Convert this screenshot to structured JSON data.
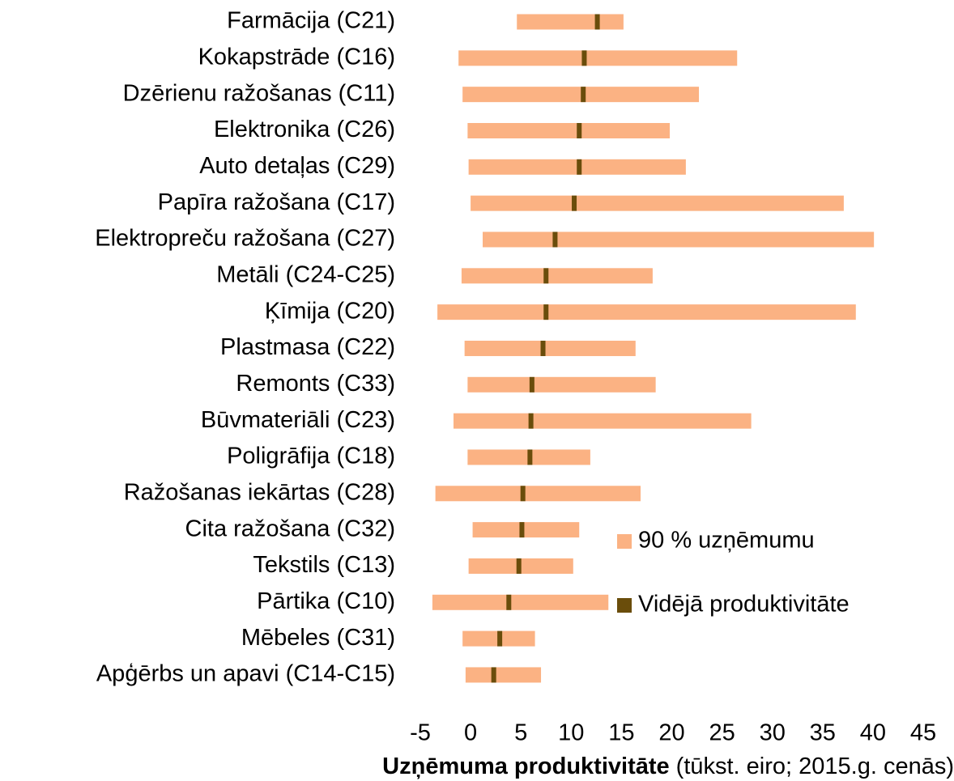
{
  "chart_data": {
    "type": "range_bar",
    "categories": [
      "Farmācija (C21)",
      "Kokapstrāde (C16)",
      "Dzērienu ražošanas (C11)",
      "Elektronika (C26)",
      "Auto detaļas (C29)",
      "Papīra ražošana (C17)",
      "Elektropreču ražošana (C27)",
      "Metāli (C24-C25)",
      "Ķīmija (C20)",
      "Plastmasa (C22)",
      "Remonts (C33)",
      "Būvmateriāli (C23)",
      "Poligrāfija (C18)",
      "Ražošanas iekārtas (C28)",
      "Cita ražošana (C32)",
      "Tekstils (C13)",
      "Pārtika (C10)",
      "Mēbeles (C31)",
      "Apģērbs un apavi (C14-C15)"
    ],
    "series": [
      {
        "name": "90 % uzņēmumu",
        "color": "#fbb283",
        "low": [
          4.6,
          -1.2,
          -0.8,
          -0.3,
          -0.2,
          0,
          1.2,
          -0.9,
          -3.3,
          -0.6,
          -0.3,
          -1.7,
          -0.3,
          -3.5,
          0.2,
          -0.2,
          -3.8,
          -0.8,
          -0.5
        ],
        "high": [
          15.2,
          26.5,
          22.7,
          19.8,
          21.4,
          37.1,
          40.1,
          18.1,
          38.3,
          16.4,
          18.4,
          27.9,
          11.9,
          16.9,
          10.8,
          10.2,
          13.7,
          6.4,
          7.0
        ]
      },
      {
        "name": "Vidējā produktivitāte",
        "color": "#6a4d0b",
        "values": [
          12.6,
          11.3,
          11.2,
          10.8,
          10.8,
          10.3,
          8.4,
          7.5,
          7.5,
          7.2,
          6.1,
          6.0,
          5.9,
          5.2,
          5.1,
          4.8,
          3.8,
          2.9,
          2.3
        ]
      }
    ],
    "x_label": [
      "Uzņēmuma produktivitāte",
      "(tūkst. eiro; 2015.g. cenās)"
    ],
    "xlim": [
      -5,
      45
    ],
    "xticks": [
      -5,
      0,
      5,
      10,
      15,
      20,
      25,
      30,
      35,
      40,
      45
    ]
  }
}
